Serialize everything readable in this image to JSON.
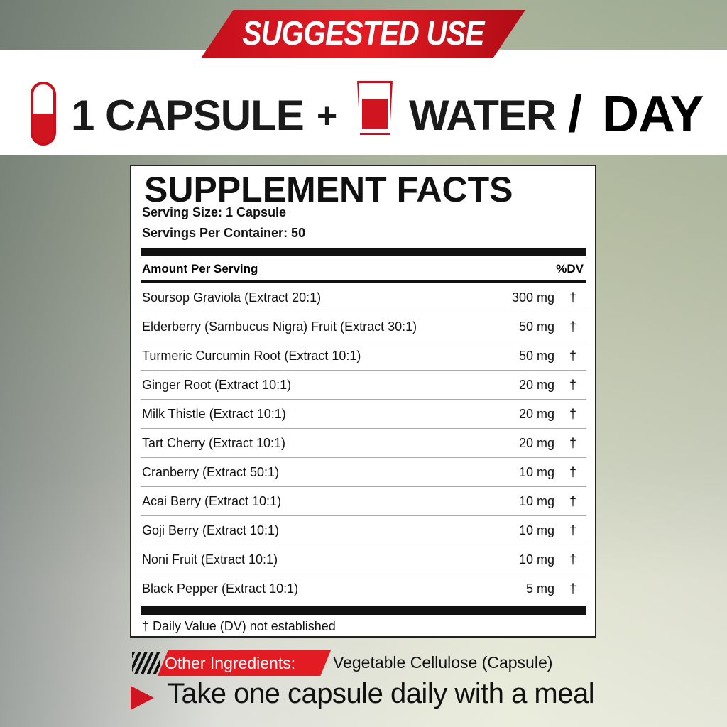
{
  "banner": "SUGGESTED USE",
  "usage": {
    "capsule": "1 CAPSULE",
    "plus": "+",
    "water": "WATER",
    "slash": "/",
    "day": "DAY",
    "icons": [
      "capsule-icon",
      "water-glass-icon"
    ]
  },
  "facts": {
    "title": "SUPPLEMENT FACTS",
    "serving_size": "Serving Size: 1 Capsule",
    "servings_per_container": "Servings Per Container: 50",
    "header": {
      "amount": "Amount Per Serving",
      "dv": "%DV"
    },
    "rows": [
      {
        "name": "Soursop Graviola (Extract 20:1)",
        "amount": "300 mg",
        "dv": "†"
      },
      {
        "name": "Elderberry (Sambucus Nigra) Fruit (Extract 30:1)",
        "amount": "50 mg",
        "dv": "†"
      },
      {
        "name": "Turmeric Curcumin Root (Extract 10:1)",
        "amount": "50 mg",
        "dv": "†"
      },
      {
        "name": "Ginger Root (Extract 10:1)",
        "amount": "20 mg",
        "dv": "†"
      },
      {
        "name": "Milk Thistle (Extract 10:1)",
        "amount": "20 mg",
        "dv": "†"
      },
      {
        "name": "Tart Cherry (Extract 10:1)",
        "amount": "20 mg",
        "dv": "†"
      },
      {
        "name": "Cranberry (Extract 50:1)",
        "amount": "10 mg",
        "dv": "†"
      },
      {
        "name": "Acai Berry (Extract 10:1)",
        "amount": "10 mg",
        "dv": "†"
      },
      {
        "name": "Goji Berry (Extract 10:1)",
        "amount": "10 mg",
        "dv": "†"
      },
      {
        "name": "Noni Fruit (Extract 10:1)",
        "amount": "10 mg",
        "dv": "†"
      },
      {
        "name": "Black Pepper (Extract 10:1)",
        "amount": "5 mg",
        "dv": "†"
      }
    ],
    "footnote": "† Daily Value (DV) not established"
  },
  "other": {
    "label": "Other Ingredients:",
    "value": "Vegetable Cellulose (Capsule)"
  },
  "instruction": "Take one capsule daily with a meal",
  "colors": {
    "accent": "#e31b23",
    "text": "#111111"
  }
}
